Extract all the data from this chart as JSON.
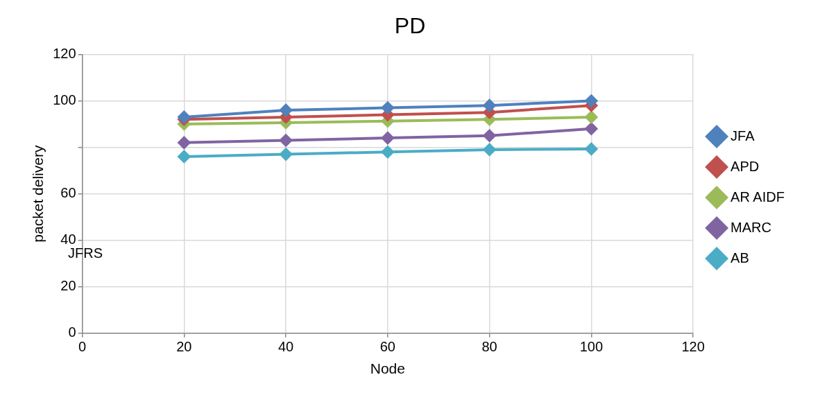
{
  "chart_data": {
    "type": "line",
    "title": "PD",
    "xlabel": "Node",
    "ylabel": "packet delivery",
    "x": [
      20,
      40,
      60,
      80,
      100
    ],
    "series": [
      {
        "name": "JFA",
        "color": "#4f81bd",
        "values": [
          93,
          96,
          97,
          98,
          100
        ]
      },
      {
        "name": "APD",
        "color": "#c0504d",
        "values": [
          92,
          93,
          94,
          95,
          98
        ]
      },
      {
        "name": "AR AIDF",
        "color": "#9bbb59",
        "values": [
          90,
          90.6,
          91.3,
          92,
          93
        ]
      },
      {
        "name": "MARC",
        "color": "#8064a2",
        "values": [
          82,
          83,
          84,
          85,
          88
        ]
      },
      {
        "name": "AB",
        "color": "#4bacc6",
        "values": [
          76,
          77,
          78,
          79,
          79.3
        ]
      }
    ],
    "xlim": [
      0,
      120
    ],
    "xticks": [
      0,
      20,
      40,
      60,
      80,
      100,
      120
    ],
    "ylim": [
      0,
      120
    ],
    "yticks": [
      0,
      20,
      40,
      60,
      {
        "value": 80,
        "label": null
      },
      100,
      120
    ],
    "grid": true,
    "legend": "right",
    "marker": "diamond",
    "line_style": "solid",
    "annotations": [
      "JFRS"
    ]
  }
}
